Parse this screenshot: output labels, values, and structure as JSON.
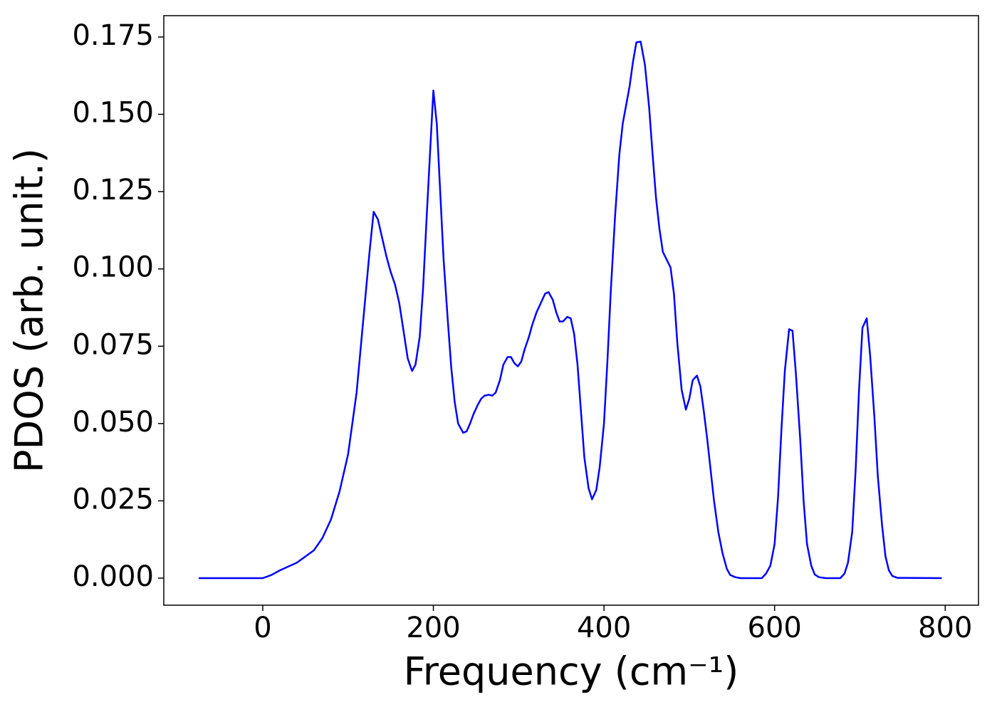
{
  "chart_data": {
    "type": "line",
    "xlabel": "Frequency (cm⁻¹)",
    "ylabel": "PDOS (arb. unit.)",
    "x": [
      -75,
      0,
      10,
      20,
      40,
      60,
      70,
      80,
      90,
      100,
      110,
      115,
      120,
      125,
      130,
      135,
      140,
      145,
      150,
      155,
      160,
      165,
      170,
      175,
      179,
      184,
      188,
      192,
      196,
      200,
      204,
      208,
      212,
      217,
      221,
      225,
      229,
      235,
      239,
      243,
      247,
      252,
      256,
      260,
      265,
      269,
      273,
      278,
      282,
      287,
      291,
      295,
      299,
      303,
      307,
      312,
      316,
      321,
      326,
      331,
      335,
      340,
      344,
      348,
      352,
      357,
      361,
      365,
      369,
      373,
      377,
      382,
      386,
      391,
      395,
      400,
      404,
      408,
      413,
      418,
      422,
      426,
      430,
      434,
      438,
      443,
      448,
      453,
      457,
      461,
      465,
      469,
      478,
      482,
      486,
      491,
      496,
      500,
      504,
      509,
      513,
      517,
      521,
      525,
      529,
      534,
      539,
      544,
      548,
      554,
      560,
      585,
      590,
      595,
      600,
      604,
      608,
      612,
      617,
      621,
      625,
      630,
      634,
      638,
      643,
      647,
      652,
      660,
      677,
      682,
      686,
      691,
      695,
      699,
      703,
      708,
      712,
      717,
      721,
      726,
      730,
      734,
      738,
      744,
      796
    ],
    "series": [
      {
        "name": "PDOS",
        "color": "#0000ff",
        "values": [
          0,
          0,
          0.001,
          0.0025,
          0.005,
          0.009,
          0.013,
          0.019,
          0.028,
          0.04,
          0.06,
          0.075,
          0.09,
          0.105,
          0.1185,
          0.116,
          0.11,
          0.104,
          0.099,
          0.095,
          0.089,
          0.08,
          0.071,
          0.067,
          0.069,
          0.078,
          0.094,
          0.116,
          0.137,
          0.1577,
          0.147,
          0.125,
          0.103,
          0.083,
          0.068,
          0.057,
          0.05,
          0.047,
          0.0475,
          0.05,
          0.053,
          0.056,
          0.058,
          0.059,
          0.0593,
          0.059,
          0.06,
          0.064,
          0.069,
          0.0715,
          0.0715,
          0.0695,
          0.0685,
          0.07,
          0.074,
          0.078,
          0.082,
          0.086,
          0.089,
          0.092,
          0.0925,
          0.09,
          0.086,
          0.083,
          0.083,
          0.0845,
          0.084,
          0.079,
          0.069,
          0.054,
          0.039,
          0.029,
          0.0255,
          0.0285,
          0.036,
          0.05,
          0.07,
          0.093,
          0.117,
          0.137,
          0.147,
          0.153,
          0.159,
          0.167,
          0.1733,
          0.1735,
          0.166,
          0.152,
          0.137,
          0.123,
          0.113,
          0.1055,
          0.1005,
          0.092,
          0.076,
          0.061,
          0.0545,
          0.058,
          0.064,
          0.0655,
          0.062,
          0.054,
          0.045,
          0.035,
          0.025,
          0.015,
          0.008,
          0.003,
          0.001,
          0.0003,
          0,
          0,
          0.0015,
          0.004,
          0.011,
          0.026,
          0.048,
          0.067,
          0.0805,
          0.08,
          0.066,
          0.045,
          0.025,
          0.011,
          0.004,
          0.0012,
          0.0003,
          0,
          0,
          0.0015,
          0.005,
          0.015,
          0.035,
          0.061,
          0.081,
          0.084,
          0.072,
          0.052,
          0.033,
          0.017,
          0.007,
          0.0025,
          0.0007,
          0.0001,
          0
        ]
      }
    ],
    "xlim": [
      -116,
      839
    ],
    "ylim": [
      -0.00875,
      0.1819
    ],
    "xticks": [
      0,
      200,
      400,
      600,
      800
    ],
    "yticks": [
      {
        "value": 0,
        "label": "0.000"
      },
      {
        "value": 0.025,
        "label": "0.025"
      },
      {
        "value": 0.05,
        "label": "0.050"
      },
      {
        "value": 0.075,
        "label": "0.075"
      },
      {
        "value": 0.1,
        "label": "0.100"
      },
      {
        "value": 0.125,
        "label": "0.125"
      },
      {
        "value": 0.15,
        "label": "0.150"
      },
      {
        "value": 0.175,
        "label": "0.175"
      }
    ],
    "grid": false
  }
}
